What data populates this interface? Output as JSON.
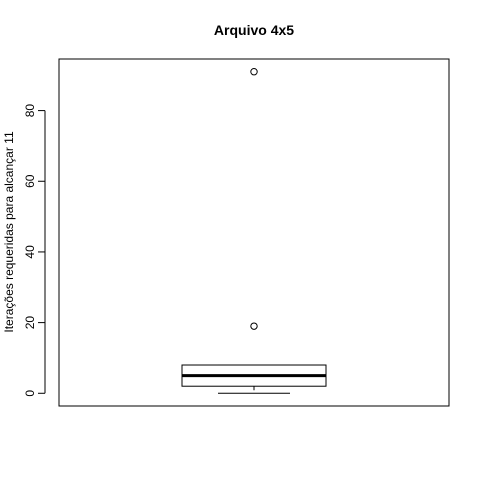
{
  "chart_data": {
    "type": "boxplot",
    "title": "Arquivo 4x5",
    "xlabel": "",
    "ylabel": "Iterações requeridas para alcançar 11",
    "yticks": [
      "0",
      "20",
      "40",
      "60",
      "80"
    ],
    "ylim": [
      -3.6,
      94.6
    ],
    "box": {
      "min": 0,
      "q1": 2,
      "median": 5,
      "q3": 8,
      "whisker_high": 8,
      "outliers": [
        19,
        91
      ]
    },
    "grid": false,
    "legend": "none",
    "colors": {
      "stroke": "#000000",
      "background": "#ffffff"
    }
  }
}
